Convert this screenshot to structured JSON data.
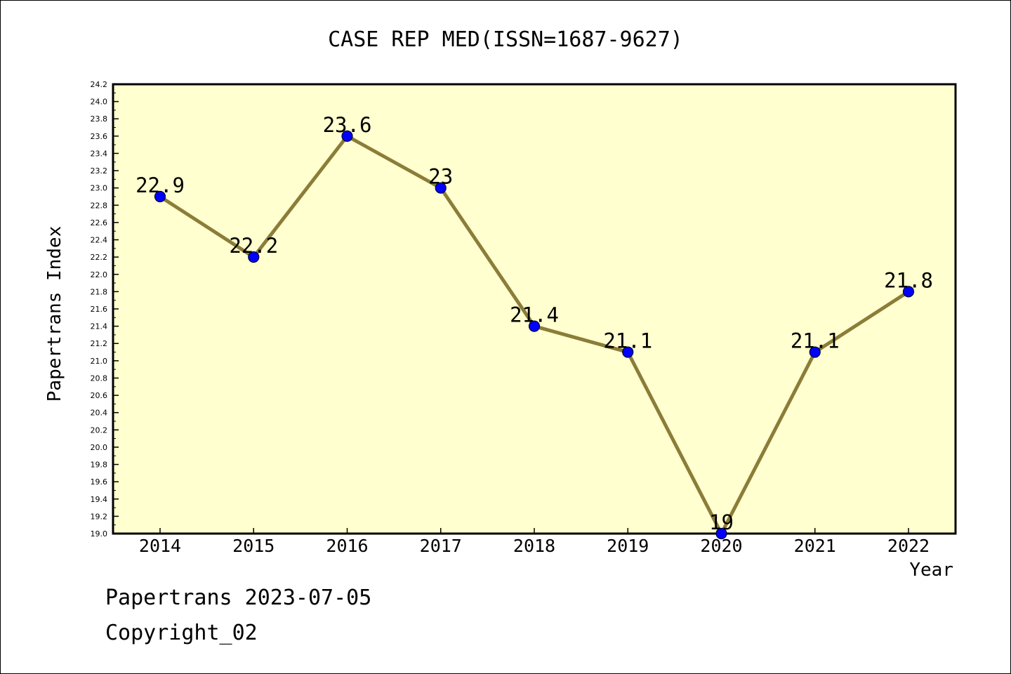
{
  "chart_data": {
    "type": "line",
    "title": "CASE REP MED(ISSN=1687-9627)",
    "xlabel": "Year",
    "ylabel": "Papertrans Index",
    "categories": [
      "2014",
      "2015",
      "2016",
      "2017",
      "2018",
      "2019",
      "2020",
      "2021",
      "2022"
    ],
    "series": [
      {
        "name": "Papertrans Index",
        "values": [
          22.9,
          22.2,
          23.6,
          23,
          21.4,
          21.1,
          19,
          21.1,
          21.8
        ]
      }
    ],
    "data_labels": [
      "22.9",
      "22.2",
      "23.6",
      "23",
      "21.4",
      "21.1",
      "19",
      "21.1",
      "21.8"
    ],
    "ylim": [
      19.0,
      24.2
    ],
    "y_tick_step": 0.2,
    "grid": false,
    "colors": {
      "plot_background": "#ffffd0",
      "line": "#8b7d38",
      "marker": "#0000ff"
    }
  },
  "footer": {
    "line1": "Papertrans 2023-07-05",
    "line2": "Copyright_02"
  }
}
